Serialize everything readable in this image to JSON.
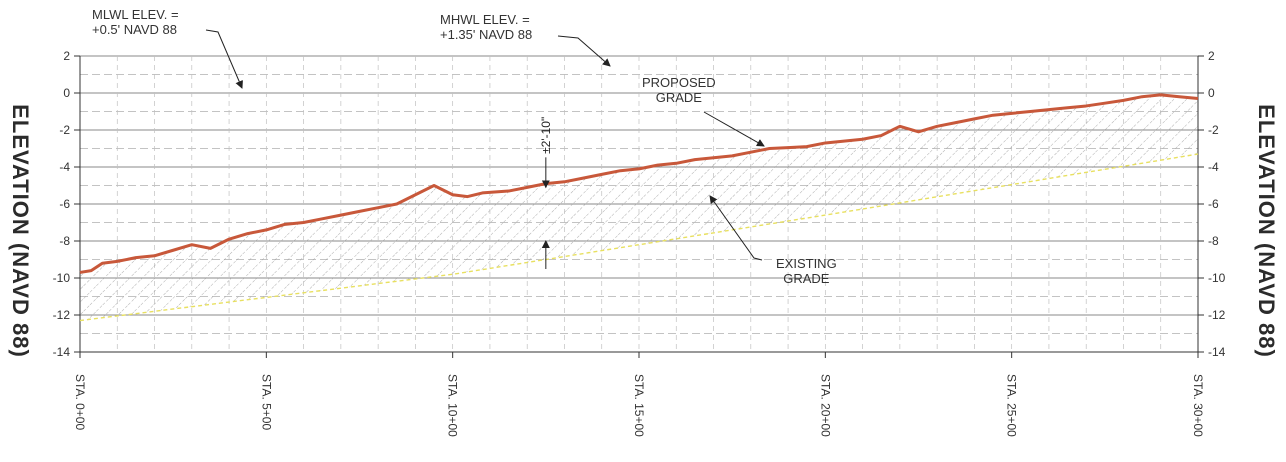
{
  "chart_data": {
    "type": "line",
    "ylabel": "ELEVATION (NAVD 88)",
    "ylim": [
      -14,
      2
    ],
    "yticks": [
      2,
      0,
      -2,
      -4,
      -6,
      -8,
      -10,
      -12,
      -14
    ],
    "xlim": [
      0,
      30
    ],
    "xticks": [
      {
        "value": 0,
        "label": "STA. 0+00"
      },
      {
        "value": 5,
        "label": "STA. 5+00"
      },
      {
        "value": 10,
        "label": "STA. 10+00"
      },
      {
        "value": 15,
        "label": "STA. 15+00"
      },
      {
        "value": 20,
        "label": "STA. 20+00"
      },
      {
        "value": 25,
        "label": "STA. 25+00"
      },
      {
        "value": 30,
        "label": "STA. 30+00"
      }
    ],
    "grid": true,
    "series": [
      {
        "name": "PROPOSED GRADE",
        "color": "#c8583a",
        "x": [
          0,
          0.3,
          0.6,
          1.0,
          1.5,
          2.0,
          2.5,
          3.0,
          3.5,
          4.0,
          4.5,
          5.0,
          5.5,
          6.0,
          6.5,
          7.0,
          7.5,
          8.0,
          8.5,
          9.0,
          9.5,
          10.0,
          10.4,
          10.8,
          11.5,
          12.0,
          12.5,
          13.0,
          13.5,
          14.0,
          14.5,
          15.0,
          15.5,
          16.0,
          16.5,
          17.0,
          17.5,
          18.0,
          18.5,
          19.0,
          19.5,
          20.0,
          20.5,
          21.0,
          21.5,
          22.0,
          22.5,
          23.0,
          23.5,
          24.0,
          24.5,
          25.0,
          25.5,
          26.0,
          26.5,
          27.0,
          27.5,
          28.0,
          28.5,
          29.0,
          29.5,
          30.0
        ],
        "y": [
          -9.7,
          -9.6,
          -9.2,
          -9.1,
          -8.9,
          -8.8,
          -8.5,
          -8.2,
          -8.4,
          -7.9,
          -7.6,
          -7.4,
          -7.1,
          -7.0,
          -6.8,
          -6.6,
          -6.4,
          -6.2,
          -6.0,
          -5.5,
          -5.0,
          -5.5,
          -5.6,
          -5.4,
          -5.3,
          -5.1,
          -4.9,
          -4.8,
          -4.6,
          -4.4,
          -4.2,
          -4.1,
          -3.9,
          -3.8,
          -3.6,
          -3.5,
          -3.4,
          -3.2,
          -3.0,
          -2.95,
          -2.9,
          -2.7,
          -2.6,
          -2.5,
          -2.3,
          -1.8,
          -2.1,
          -1.8,
          -1.6,
          -1.4,
          -1.2,
          -1.1,
          -1.0,
          -0.9,
          -0.8,
          -0.7,
          -0.55,
          -0.4,
          -0.2,
          -0.1,
          -0.2,
          -0.3
        ]
      },
      {
        "name": "EXISTING GRADE",
        "color": "#e8e060",
        "x": [
          0,
          10,
          20,
          30
        ],
        "y": [
          -12.3,
          -9.8,
          -6.6,
          -3.3
        ]
      }
    ],
    "reference_lines": [
      {
        "name": "MLWL",
        "y": 0.5
      },
      {
        "name": "MHWL",
        "y": 1.35
      }
    ],
    "dimension": {
      "label": "±2'-10\"",
      "x": 12.5
    }
  },
  "annotations": {
    "mlwl": "MLWL ELEV. =\n+0.5' NAVD 88",
    "mhwl": "MHWL ELEV. =\n+1.35' NAVD 88",
    "proposed": "PROPOSED\nGRADE",
    "existing": "EXISTING\nGRADE"
  }
}
